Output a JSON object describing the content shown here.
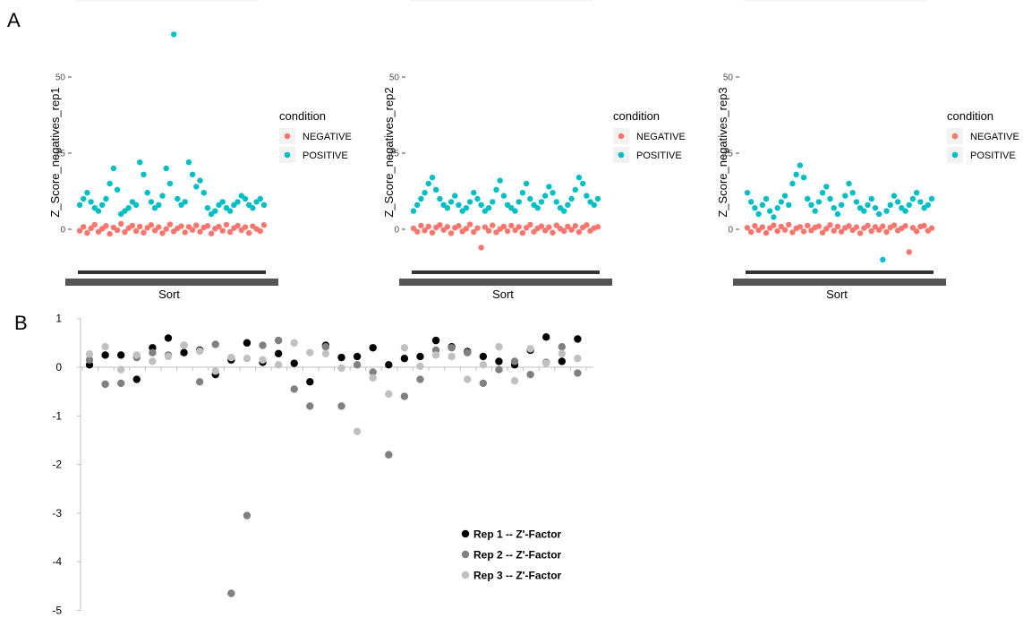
{
  "panels": {
    "a_label": "A",
    "b_label": "B"
  },
  "colors": {
    "negative": "#f8766d",
    "positive": "#00bfc4",
    "rep1": "#000000",
    "rep2": "#808080",
    "rep3": "#c0c0c0"
  },
  "chart_data": [
    {
      "type": "scatter",
      "panel": "A",
      "xlabel": "Sort",
      "ylabel": "Z_Score_negatives_rep1",
      "yticks": [
        "0",
        "25",
        "50"
      ],
      "ylim": [
        -3,
        68
      ],
      "legend_title": "condition",
      "legend": [
        "NEGATIVE",
        "POSITIVE"
      ],
      "legend_position": "right",
      "series": [
        {
          "name": "NEGATIVE",
          "values": [
            -0.5,
            0.8,
            -1.2,
            0.3,
            1.5,
            -0.8,
            0.2,
            1.1,
            -1.5,
            0.6,
            -0.3,
            1.8,
            -0.9,
            0.4,
            1.2,
            -0.6,
            0.9,
            -1.1,
            0.5,
            1.4,
            -0.4,
            0.7,
            -1.3,
            0.1,
            1.6,
            -0.7,
            0.3,
            1.0,
            -1.0,
            0.8,
            -0.2,
            1.3,
            -0.8,
            0.6,
            1.1,
            -1.4,
            0.2,
            0.9,
            -0.5,
            1.5,
            -0.9,
            0.4,
            1.2,
            -0.3,
            0.7,
            -1.2,
            1.0,
            0.1,
            -0.6,
            1.4
          ]
        },
        {
          "name": "POSITIVE",
          "values": [
            8,
            10,
            12,
            9,
            7,
            6,
            8,
            10,
            15,
            20,
            13,
            5,
            6,
            7,
            9,
            8,
            22,
            18,
            12,
            9,
            7,
            8,
            11,
            20,
            15,
            64,
            10,
            8,
            9,
            22,
            18,
            14,
            16,
            12,
            7,
            5,
            6,
            8,
            9,
            7,
            6,
            8,
            9,
            11,
            10,
            8,
            7,
            9,
            10,
            8
          ]
        }
      ]
    },
    {
      "type": "scatter",
      "panel": "A",
      "xlabel": "Sort",
      "ylabel": "Z_Score_negatives_rep2",
      "yticks": [
        "0",
        "25",
        "50"
      ],
      "ylim": [
        -3,
        68
      ],
      "legend_title": "condition",
      "legend": [
        "NEGATIVE",
        "POSITIVE"
      ],
      "legend_position": "right",
      "series": [
        {
          "name": "NEGATIVE",
          "values": [
            0.3,
            -0.8,
            1.2,
            -0.4,
            0.9,
            -1.1,
            0.6,
            1.4,
            -0.2,
            0.8,
            -1.3,
            0.5,
            1.1,
            -0.7,
            0.2,
            1.6,
            -0.9,
            0.4,
            -6.0,
            0.7,
            -0.5,
            1.3,
            -1.0,
            0.1,
            0.9,
            -0.6,
            1.2,
            -0.3,
            0.8,
            -1.2,
            0.5,
            1.5,
            -0.8,
            0.3,
            1.0,
            -0.4,
            0.7,
            -1.1,
            1.3,
            0.2,
            -0.6,
            0.9,
            -0.2,
            1.1,
            -0.9,
            0.6,
            1.4,
            -0.5,
            0.4,
            0.8
          ]
        },
        {
          "name": "POSITIVE",
          "values": [
            6,
            8,
            10,
            12,
            15,
            17,
            13,
            10,
            8,
            7,
            9,
            11,
            8,
            6,
            7,
            9,
            12,
            10,
            8,
            6,
            7,
            9,
            13,
            16,
            11,
            8,
            7,
            6,
            9,
            12,
            15,
            10,
            8,
            7,
            9,
            11,
            14,
            12,
            9,
            7,
            6,
            8,
            10,
            13,
            17,
            15,
            11,
            9,
            8,
            10
          ]
        }
      ]
    },
    {
      "type": "scatter",
      "panel": "A",
      "xlabel": "Sort",
      "ylabel": "Z_Score_negatives_rep3",
      "yticks": [
        "0",
        "25",
        "50"
      ],
      "ylim": [
        -3,
        68
      ],
      "legend_title": "condition",
      "legend": [
        "NEGATIVE",
        "POSITIVE"
      ],
      "legend_position": "right",
      "series": [
        {
          "name": "NEGATIVE",
          "values": [
            0.5,
            -0.9,
            1.1,
            -0.3,
            0.7,
            -1.2,
            0.4,
            1.3,
            -0.6,
            0.9,
            -0.2,
            1.5,
            -1.0,
            0.3,
            0.8,
            -0.7,
            1.2,
            -0.4,
            0.6,
            1.0,
            -1.1,
            0.2,
            1.4,
            -0.5,
            0.9,
            -0.8,
            0.5,
            1.1,
            -0.3,
            0.7,
            -1.3,
            0.4,
            1.2,
            -0.6,
            0.8,
            -0.2,
            1.0,
            -0.9,
            0.6,
            1.3,
            -0.4,
            0.3,
            1.1,
            -7.5,
            0.5,
            -0.7,
            0.9,
            1.2,
            -0.5,
            0.4
          ]
        },
        {
          "name": "POSITIVE",
          "values": [
            12,
            9,
            7,
            5,
            8,
            10,
            6,
            4,
            7,
            9,
            11,
            8,
            15,
            18,
            21,
            17,
            10,
            8,
            6,
            9,
            12,
            14,
            10,
            7,
            5,
            8,
            11,
            15,
            12,
            9,
            7,
            6,
            8,
            10,
            7,
            5,
            -10,
            6,
            8,
            11,
            9,
            7,
            6,
            8,
            10,
            12,
            9,
            7,
            8,
            10
          ]
        }
      ]
    },
    {
      "type": "scatter",
      "panel": "B",
      "xlabel": "",
      "ylabel": "",
      "yticks": [
        "1",
        "0",
        "-1",
        "-2",
        "-3",
        "-4",
        "-5"
      ],
      "ylim": [
        -5,
        1
      ],
      "legend": [
        "Rep 1 -- Z'-Factor",
        "Rep 2 -- Z'-Factor",
        "Rep 3 -- Z'-Factor"
      ],
      "legend_position": "bottom-right",
      "series": [
        {
          "name": "Rep 1 -- Z'-Factor",
          "values": [
            0.05,
            0.25,
            0.25,
            -0.25,
            0.4,
            0.6,
            0.3,
            0.35,
            -0.15,
            0.15,
            0.5,
            0.1,
            0.28,
            0.08,
            -0.3,
            0.45,
            0.2,
            0.22,
            0.4,
            0.05,
            0.18,
            0.22,
            0.55,
            0.42,
            0.32,
            0.22,
            0.12,
            0.05,
            0.35,
            0.62,
            0.12,
            0.58
          ]
        },
        {
          "name": "Rep 2 -- Z'-Factor",
          "values": [
            0.15,
            -0.35,
            -0.33,
            0.2,
            0.3,
            0.25,
            0.45,
            -0.3,
            0.47,
            -4.65,
            -3.05,
            0.45,
            0.55,
            -0.45,
            -0.8,
            0.42,
            -0.8,
            0.05,
            -0.1,
            -1.8,
            -0.6,
            -0.25,
            0.35,
            0.4,
            0.3,
            -0.33,
            -0.05,
            0.12,
            -0.15,
            0.1,
            0.42,
            -0.12
          ]
        },
        {
          "name": "Rep 3 -- Z'-Factor",
          "values": [
            0.27,
            0.42,
            -0.05,
            0.25,
            0.12,
            0.22,
            0.45,
            0.33,
            -0.08,
            0.2,
            0.18,
            0.15,
            0.05,
            0.5,
            0.3,
            0.28,
            -0.02,
            -1.32,
            -0.22,
            -0.55,
            0.4,
            0.02,
            0.25,
            0.22,
            -0.25,
            0.05,
            0.42,
            -0.28,
            0.38,
            0.08,
            0.28,
            0.18
          ]
        }
      ]
    }
  ]
}
